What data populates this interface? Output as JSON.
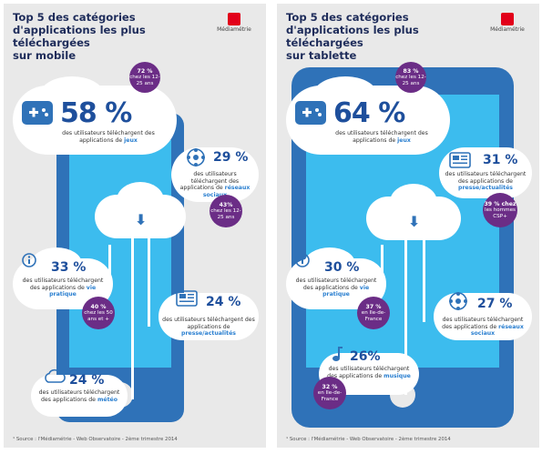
{
  "left": {
    "title": "Top 5 des catégories\nd'applications les plus téléchargées\nsur mobile",
    "logo": "Médiamétrie",
    "items": [
      {
        "pct": "58 %",
        "desc_pre": "des utilisateurs téléchargent des applications de ",
        "desc_key": "jeux"
      },
      {
        "pct": "29 %",
        "desc_pre": "des utilisateurs téléchargent des applications de ",
        "desc_key": "réseaux sociaux"
      },
      {
        "pct": "33 %",
        "desc_pre": "des utilisateurs téléchargent des applications de ",
        "desc_key": "vie pratique"
      },
      {
        "pct": "24 %",
        "desc_pre": "des utilisateurs téléchargent des applications de ",
        "desc_key": "presse/actualités"
      },
      {
        "pct": "24 %",
        "desc_pre": "des utilisateurs téléchargent des applications de ",
        "desc_key": "météo"
      }
    ],
    "bubbles": [
      {
        "pct": "72 %",
        "text": "chez les 12-25 ans"
      },
      {
        "pct": "43%",
        "text": "chez les 12-25 ans"
      },
      {
        "pct": "40 %",
        "text": "chez les 50 ans et +"
      }
    ],
    "source": "¹ Source : l'Médiamétrie - Web Observatoire - 2ème trimestre 2014"
  },
  "right": {
    "title": "Top 5 des catégories\nd'applications les plus téléchargées\nsur tablette",
    "logo": "Médiamétrie",
    "items": [
      {
        "pct": "64 %",
        "desc_pre": "des utilisateurs téléchargent des applications de ",
        "desc_key": "jeux"
      },
      {
        "pct": "31 %",
        "desc_pre": "des utilisateurs téléchargent des applications de ",
        "desc_key": "presse/actualités"
      },
      {
        "pct": "30 %",
        "desc_pre": "des utilisateurs téléchargent des applications de ",
        "desc_key": "vie pratique"
      },
      {
        "pct": "27 %",
        "desc_pre": "des utilisateurs téléchargent des applications de ",
        "desc_key": "réseaux sociaux"
      },
      {
        "pct": "26%",
        "desc_pre": "des utilisateurs téléchargent des applications de ",
        "desc_key": "musique"
      }
    ],
    "bubbles": [
      {
        "pct": "83 %",
        "text": "chez les 12-25 ans"
      },
      {
        "pct": "39 % chez",
        "text": "les hommes CSP+"
      },
      {
        "pct": "37 %",
        "text": "en Ile-de-France"
      },
      {
        "pct": "32 %",
        "text": "en Ile-de-France"
      }
    ],
    "source": "¹ Source : l'Médiamétrie - Web Observatoire - 2ème trimestre 2014"
  },
  "colors": {
    "phone": "#2f72b8",
    "screen": "#3cbcee",
    "purple": "#6b2d86",
    "title": "#1e2c5a",
    "accent": "#e2001a"
  }
}
